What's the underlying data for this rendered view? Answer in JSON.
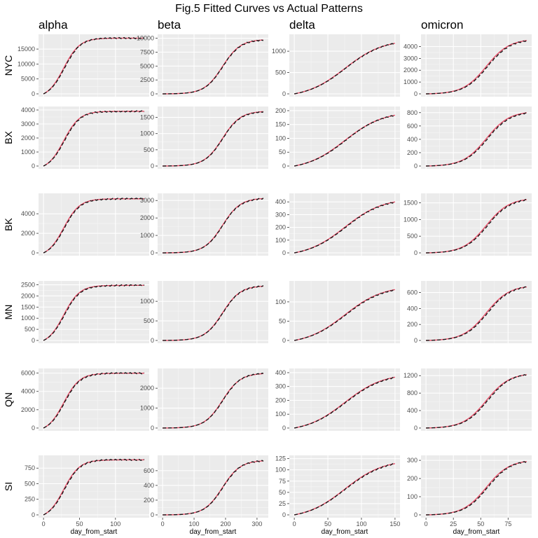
{
  "chart_data": {
    "type": "line",
    "title": "Fig.5 Fitted Curves vs Actual Patterns",
    "xlabel": "day_from_start",
    "columns": [
      "alpha",
      "beta",
      "delta",
      "omicron"
    ],
    "rows": [
      "NYC",
      "BX",
      "BK",
      "MN",
      "QN",
      "SI"
    ],
    "grid": true,
    "facet_x": {
      "alpha": {
        "xlim": [
          0,
          140
        ],
        "ticks": [
          0,
          50,
          100
        ],
        "n": 140,
        "t0": 28,
        "k": 0.09
      },
      "beta": {
        "xlim": [
          0,
          320
        ],
        "ticks": [
          0,
          100,
          200,
          300
        ],
        "n": 320,
        "t0": 190,
        "k": 0.035
      },
      "delta": {
        "xlim": [
          0,
          150
        ],
        "ticks": [
          0,
          50,
          100,
          150
        ],
        "n": 150,
        "t0": 75,
        "k": 0.035
      },
      "omicron": {
        "xlim": [
          0,
          92
        ],
        "ticks": [
          0,
          25,
          50,
          75
        ],
        "n": 92,
        "t0": 55,
        "k": 0.095
      }
    },
    "panels": [
      {
        "row": "NYC",
        "col": "alpha",
        "ylim": [
          0,
          19000
        ],
        "yticks": [
          0,
          5000,
          10000,
          15000
        ],
        "final": 18400
      },
      {
        "row": "NYC",
        "col": "beta",
        "ylim": [
          0,
          10200
        ],
        "yticks": [
          0,
          2500,
          5000,
          7500,
          10000
        ],
        "final": 9650
      },
      {
        "row": "NYC",
        "col": "delta",
        "ylim": [
          0,
          1330
        ],
        "yticks": [
          0,
          500,
          1000
        ],
        "final": 1260
      },
      {
        "row": "NYC",
        "col": "omicron",
        "ylim": [
          0,
          4800
        ],
        "yticks": [
          0,
          1000,
          2000,
          3000,
          4000
        ],
        "final": 4580
      },
      {
        "row": "BX",
        "col": "alpha",
        "ylim": [
          0,
          4050
        ],
        "yticks": [
          0,
          1000,
          2000,
          3000,
          4000
        ],
        "final": 3850
      },
      {
        "row": "BX",
        "col": "beta",
        "ylim": [
          0,
          1750
        ],
        "yticks": [
          0,
          500,
          1000,
          1500
        ],
        "final": 1670
      },
      {
        "row": "BX",
        "col": "delta",
        "ylim": [
          0,
          205
        ],
        "yticks": [
          0,
          50,
          100,
          150,
          200
        ],
        "final": 195
      },
      {
        "row": "BX",
        "col": "omicron",
        "ylim": [
          0,
          850
        ],
        "yticks": [
          0,
          200,
          400,
          600,
          800
        ],
        "final": 810
      },
      {
        "row": "BK",
        "col": "alpha",
        "ylim": [
          0,
          5800
        ],
        "yticks": [
          0,
          2000,
          4000
        ],
        "final": 5450
      },
      {
        "row": "BK",
        "col": "beta",
        "ylim": [
          0,
          3250
        ],
        "yticks": [
          0,
          1000,
          2000,
          3000
        ],
        "final": 3100
      },
      {
        "row": "BK",
        "col": "delta",
        "ylim": [
          0,
          445
        ],
        "yticks": [
          0,
          100,
          200,
          300,
          400
        ],
        "final": 425
      },
      {
        "row": "BK",
        "col": "omicron",
        "ylim": [
          0,
          1700
        ],
        "yticks": [
          0,
          500,
          1000,
          1500
        ],
        "final": 1620
      },
      {
        "row": "MN",
        "col": "alpha",
        "ylim": [
          0,
          2550
        ],
        "yticks": [
          0,
          500,
          1000,
          1500,
          2000,
          2500
        ],
        "final": 2440
      },
      {
        "row": "MN",
        "col": "beta",
        "ylim": [
          0,
          1450
        ],
        "yticks": [
          0,
          500,
          1000
        ],
        "final": 1380
      },
      {
        "row": "MN",
        "col": "delta",
        "ylim": [
          0,
          147
        ],
        "yticks": [
          0,
          50,
          100
        ],
        "final": 140
      },
      {
        "row": "MN",
        "col": "omicron",
        "ylim": [
          0,
          710
        ],
        "yticks": [
          0,
          200,
          400,
          600
        ],
        "final": 680
      },
      {
        "row": "QN",
        "col": "alpha",
        "ylim": [
          0,
          6200
        ],
        "yticks": [
          0,
          2000,
          4000,
          6000
        ],
        "final": 5900
      },
      {
        "row": "QN",
        "col": "beta",
        "ylim": [
          0,
          2850
        ],
        "yticks": [
          0,
          1000,
          2000
        ],
        "final": 2720
      },
      {
        "row": "QN",
        "col": "delta",
        "ylim": [
          0,
          410
        ],
        "yticks": [
          0,
          100,
          200,
          300,
          400
        ],
        "final": 390
      },
      {
        "row": "QN",
        "col": "omicron",
        "ylim": [
          0,
          1300
        ],
        "yticks": [
          0,
          400,
          800,
          1200
        ],
        "final": 1240
      },
      {
        "row": "SI",
        "col": "alpha",
        "ylim": [
          0,
          910
        ],
        "yticks": [
          0,
          250,
          500,
          750
        ],
        "final": 870
      },
      {
        "row": "SI",
        "col": "beta",
        "ylim": [
          0,
          770
        ],
        "yticks": [
          0,
          200,
          400,
          600
        ],
        "final": 730
      },
      {
        "row": "SI",
        "col": "delta",
        "ylim": [
          0,
          126
        ],
        "yticks": [
          0,
          25,
          50,
          75,
          100,
          125
        ],
        "final": 121
      },
      {
        "row": "SI",
        "col": "omicron",
        "ylim": [
          0,
          312
        ],
        "yticks": [
          0,
          100,
          200,
          300
        ],
        "final": 298
      }
    ],
    "series": [
      {
        "style": "solid",
        "color": "#e8506a"
      },
      {
        "style": "dashed",
        "color": "#111111"
      }
    ]
  }
}
